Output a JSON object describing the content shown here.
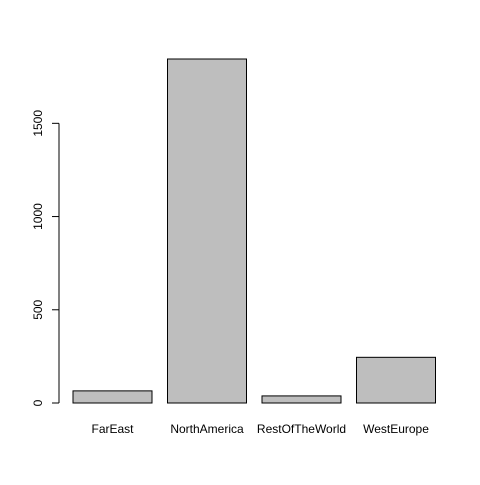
{
  "chart_data": {
    "type": "bar",
    "title": "",
    "xlabel": "",
    "ylabel": "",
    "categories": [
      "FarEast",
      "NorthAmerica",
      "RestOfTheWorld",
      "WestEurope"
    ],
    "values": [
      65,
      1845,
      38,
      245
    ],
    "ylim": [
      0,
      1845
    ],
    "yticks": [
      0,
      500,
      1000,
      1500
    ],
    "ytick_labels": [
      "0",
      "500",
      "1000",
      "1500"
    ],
    "grid": false,
    "legend": "none",
    "bar_fill_color": "#bebebe",
    "bar_stroke_color": "#000000",
    "axis_color": "#000000",
    "background_color": "#ffffff"
  }
}
